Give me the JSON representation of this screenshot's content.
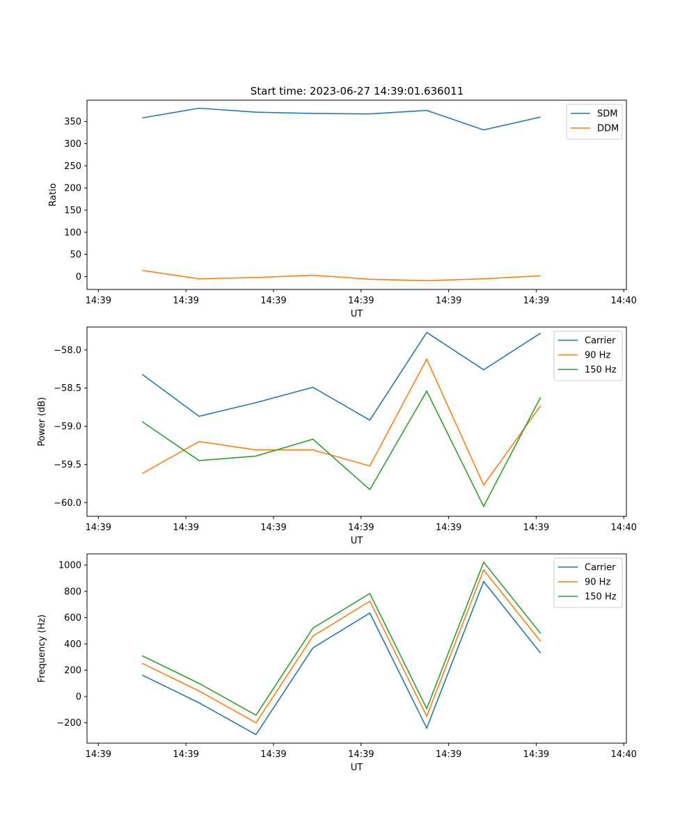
{
  "title": "Start time: 2023-06-27 14:39:01.636011",
  "colors": {
    "blue": "#1f77b4",
    "orange": "#ff7f0e",
    "green": "#2ca02c"
  },
  "chart_data": [
    {
      "type": "line",
      "title": "Start time: 2023-06-27 14:39:01.636011",
      "xlabel": "UT",
      "ylabel": "Ratio",
      "x_tick_labels": [
        "14:39",
        "14:39",
        "14:39",
        "14:39",
        "14:39",
        "14:39",
        "14:40"
      ],
      "x": [
        0.5,
        1.15,
        1.8,
        2.45,
        3.1,
        3.75,
        4.4,
        5.05
      ],
      "xlim": [
        -0.13,
        6.03
      ],
      "ylim": [
        -29,
        398
      ],
      "y_ticks": [
        0,
        50,
        100,
        150,
        200,
        250,
        300,
        350
      ],
      "y_tick_labels": [
        "0",
        "50",
        "100",
        "150",
        "200",
        "250",
        "300",
        "350"
      ],
      "legend": "top-right",
      "series": [
        {
          "name": "SDM",
          "color": "#1f77b4",
          "values": [
            358,
            380,
            371,
            368,
            367,
            375,
            331,
            360
          ]
        },
        {
          "name": "DDM",
          "color": "#ff7f0e",
          "values": [
            14,
            -5,
            -2,
            3,
            -6,
            -9,
            -5,
            2
          ]
        }
      ]
    },
    {
      "type": "line",
      "xlabel": "UT",
      "ylabel": "Power (dB)",
      "x_tick_labels": [
        "14:39",
        "14:39",
        "14:39",
        "14:39",
        "14:39",
        "14:39",
        "14:40"
      ],
      "x": [
        0.5,
        1.15,
        1.8,
        2.45,
        3.1,
        3.75,
        4.4,
        5.05
      ],
      "xlim": [
        -0.13,
        6.03
      ],
      "ylim": [
        -60.18,
        -57.7
      ],
      "y_ticks": [
        -60.0,
        -59.5,
        -59.0,
        -58.5,
        -58.0
      ],
      "y_tick_labels": [
        "−60.0",
        "−59.5",
        "−59.0",
        "−58.5",
        "−58.0"
      ],
      "legend": "top-right",
      "series": [
        {
          "name": "Carrier",
          "color": "#1f77b4",
          "values": [
            -58.32,
            -58.87,
            -58.69,
            -58.49,
            -58.92,
            -57.77,
            -58.26,
            -57.78
          ]
        },
        {
          "name": "90 Hz",
          "color": "#ff7f0e",
          "values": [
            -59.62,
            -59.2,
            -59.31,
            -59.31,
            -59.52,
            -58.12,
            -59.77,
            -58.73
          ]
        },
        {
          "name": "150 Hz",
          "color": "#2ca02c",
          "values": [
            -58.94,
            -59.45,
            -59.39,
            -59.17,
            -59.83,
            -58.54,
            -60.05,
            -58.62
          ]
        }
      ]
    },
    {
      "type": "line",
      "xlabel": "UT",
      "ylabel": "Frequency (Hz)",
      "x_tick_labels": [
        "14:39",
        "14:39",
        "14:39",
        "14:39",
        "14:39",
        "14:39",
        "14:40"
      ],
      "x": [
        0.5,
        1.15,
        1.8,
        2.45,
        3.1,
        3.75,
        4.4,
        5.05
      ],
      "xlim": [
        -0.13,
        6.03
      ],
      "ylim": [
        -355,
        1085
      ],
      "y_ticks": [
        -200,
        0,
        200,
        400,
        600,
        800,
        1000
      ],
      "y_tick_labels": [
        "−200",
        "0",
        "200",
        "400",
        "600",
        "800",
        "1000"
      ],
      "legend": "top-right",
      "series": [
        {
          "name": "Carrier",
          "color": "#1f77b4",
          "values": [
            163,
            -48,
            -290,
            370,
            635,
            -240,
            875,
            330
          ]
        },
        {
          "name": "90 Hz",
          "color": "#ff7f0e",
          "values": [
            252,
            42,
            -200,
            460,
            725,
            -150,
            963,
            420
          ]
        },
        {
          "name": "150 Hz",
          "color": "#2ca02c",
          "values": [
            310,
            100,
            -142,
            520,
            783,
            -92,
            1022,
            480
          ]
        }
      ]
    }
  ]
}
